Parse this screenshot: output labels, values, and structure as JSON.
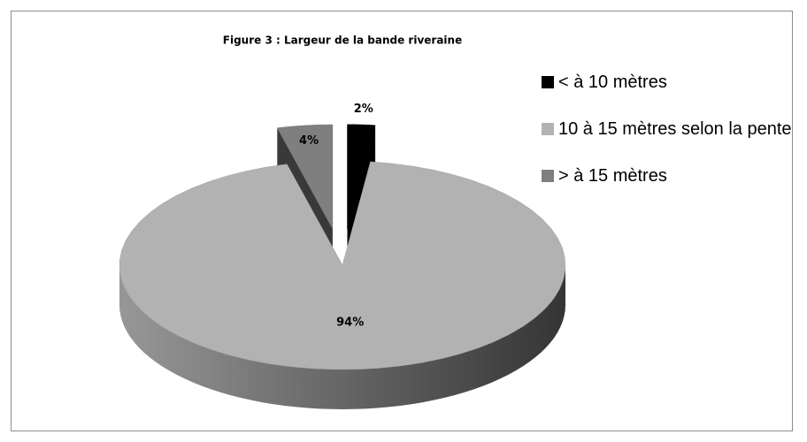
{
  "chart_data": {
    "type": "pie",
    "title": "Figure 3 :    Largeur de la bande riveraine",
    "categories": [
      "< à 10 mètres",
      "10 à 15 mètres selon la pente",
      "> à 15 mètres"
    ],
    "values": [
      2,
      94,
      4
    ],
    "value_labels": [
      "2%",
      "94%",
      "4%"
    ],
    "colors": [
      "#000000",
      "#b2b2b2",
      "#7f7f7f"
    ],
    "legend": "right"
  }
}
